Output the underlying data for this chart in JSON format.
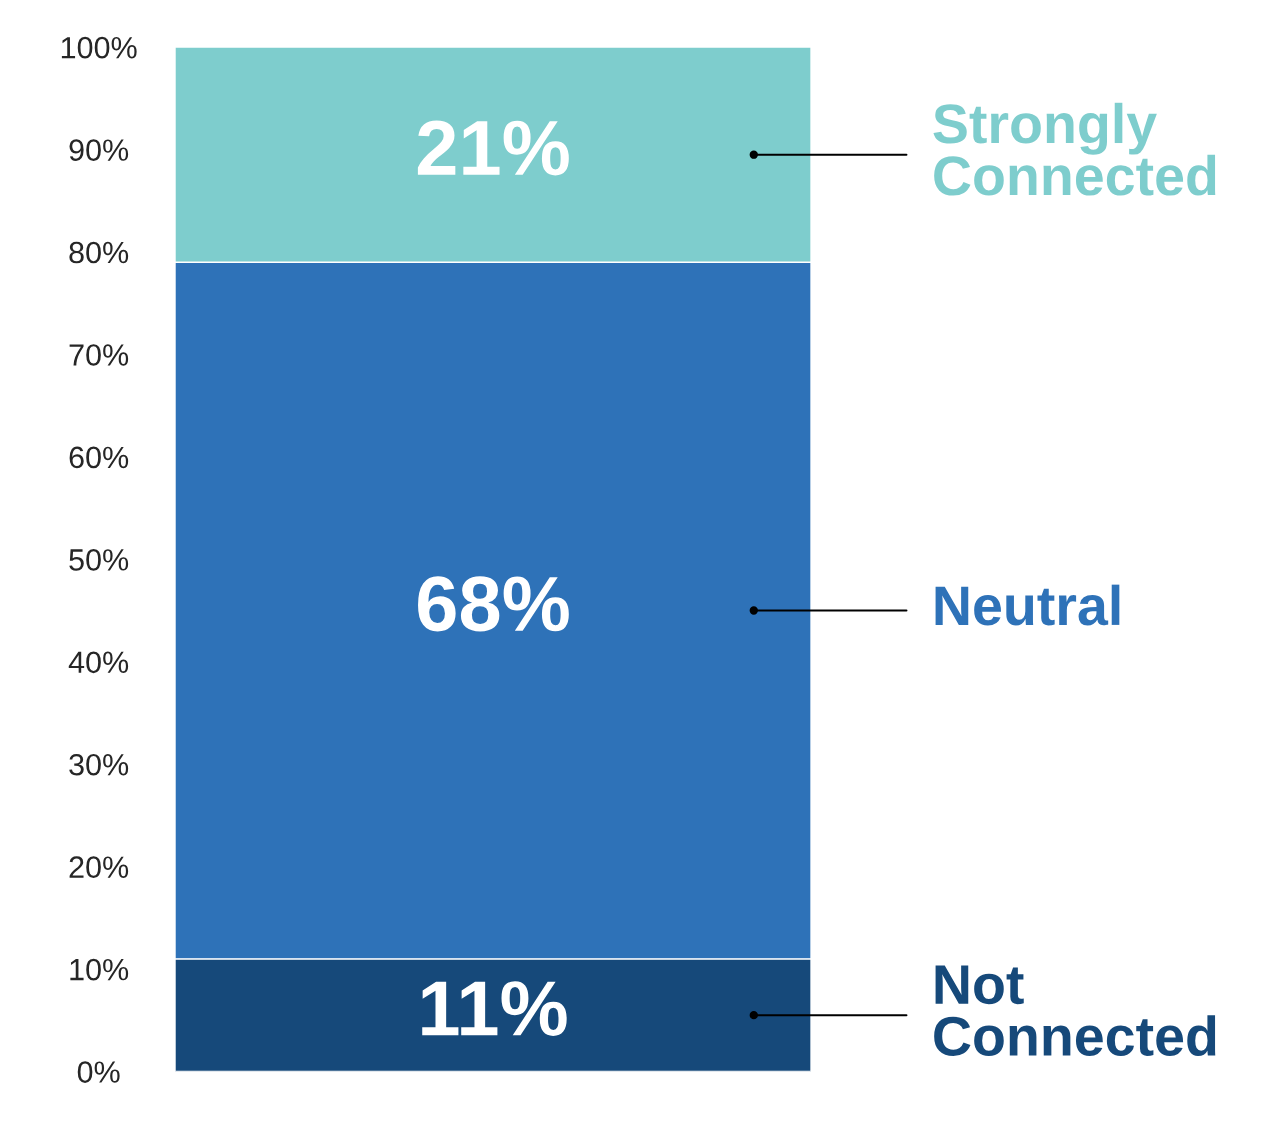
{
  "chart_data": {
    "type": "bar",
    "stacked": true,
    "categories": [
      null
    ],
    "series": [
      {
        "name": "Not Connected",
        "color": "#16497a",
        "values": [
          11
        ],
        "value_labels": [
          "11%"
        ]
      },
      {
        "name": "Neutral",
        "color": "#2e72b8",
        "values": [
          68
        ],
        "value_labels": [
          "68%"
        ]
      },
      {
        "name": "Strongly Connected",
        "color": "#7ecdcd",
        "values": [
          21
        ],
        "value_labels": [
          "21%"
        ]
      }
    ],
    "ylim": [
      0,
      100
    ],
    "yticks": [
      {
        "value": 0,
        "label": "0%"
      },
      {
        "value": 10,
        "label": "10%"
      },
      {
        "value": 20,
        "label": "20%"
      },
      {
        "value": 30,
        "label": "30%"
      },
      {
        "value": 40,
        "label": "40%"
      },
      {
        "value": 50,
        "label": "50%"
      },
      {
        "value": 60,
        "label": "60%"
      },
      {
        "value": 70,
        "label": "70%"
      },
      {
        "value": 80,
        "label": "80%"
      },
      {
        "value": 90,
        "label": "90%"
      },
      {
        "value": 100,
        "label": "100%"
      }
    ],
    "tick_labels": "y",
    "grid": false,
    "legend": false
  }
}
